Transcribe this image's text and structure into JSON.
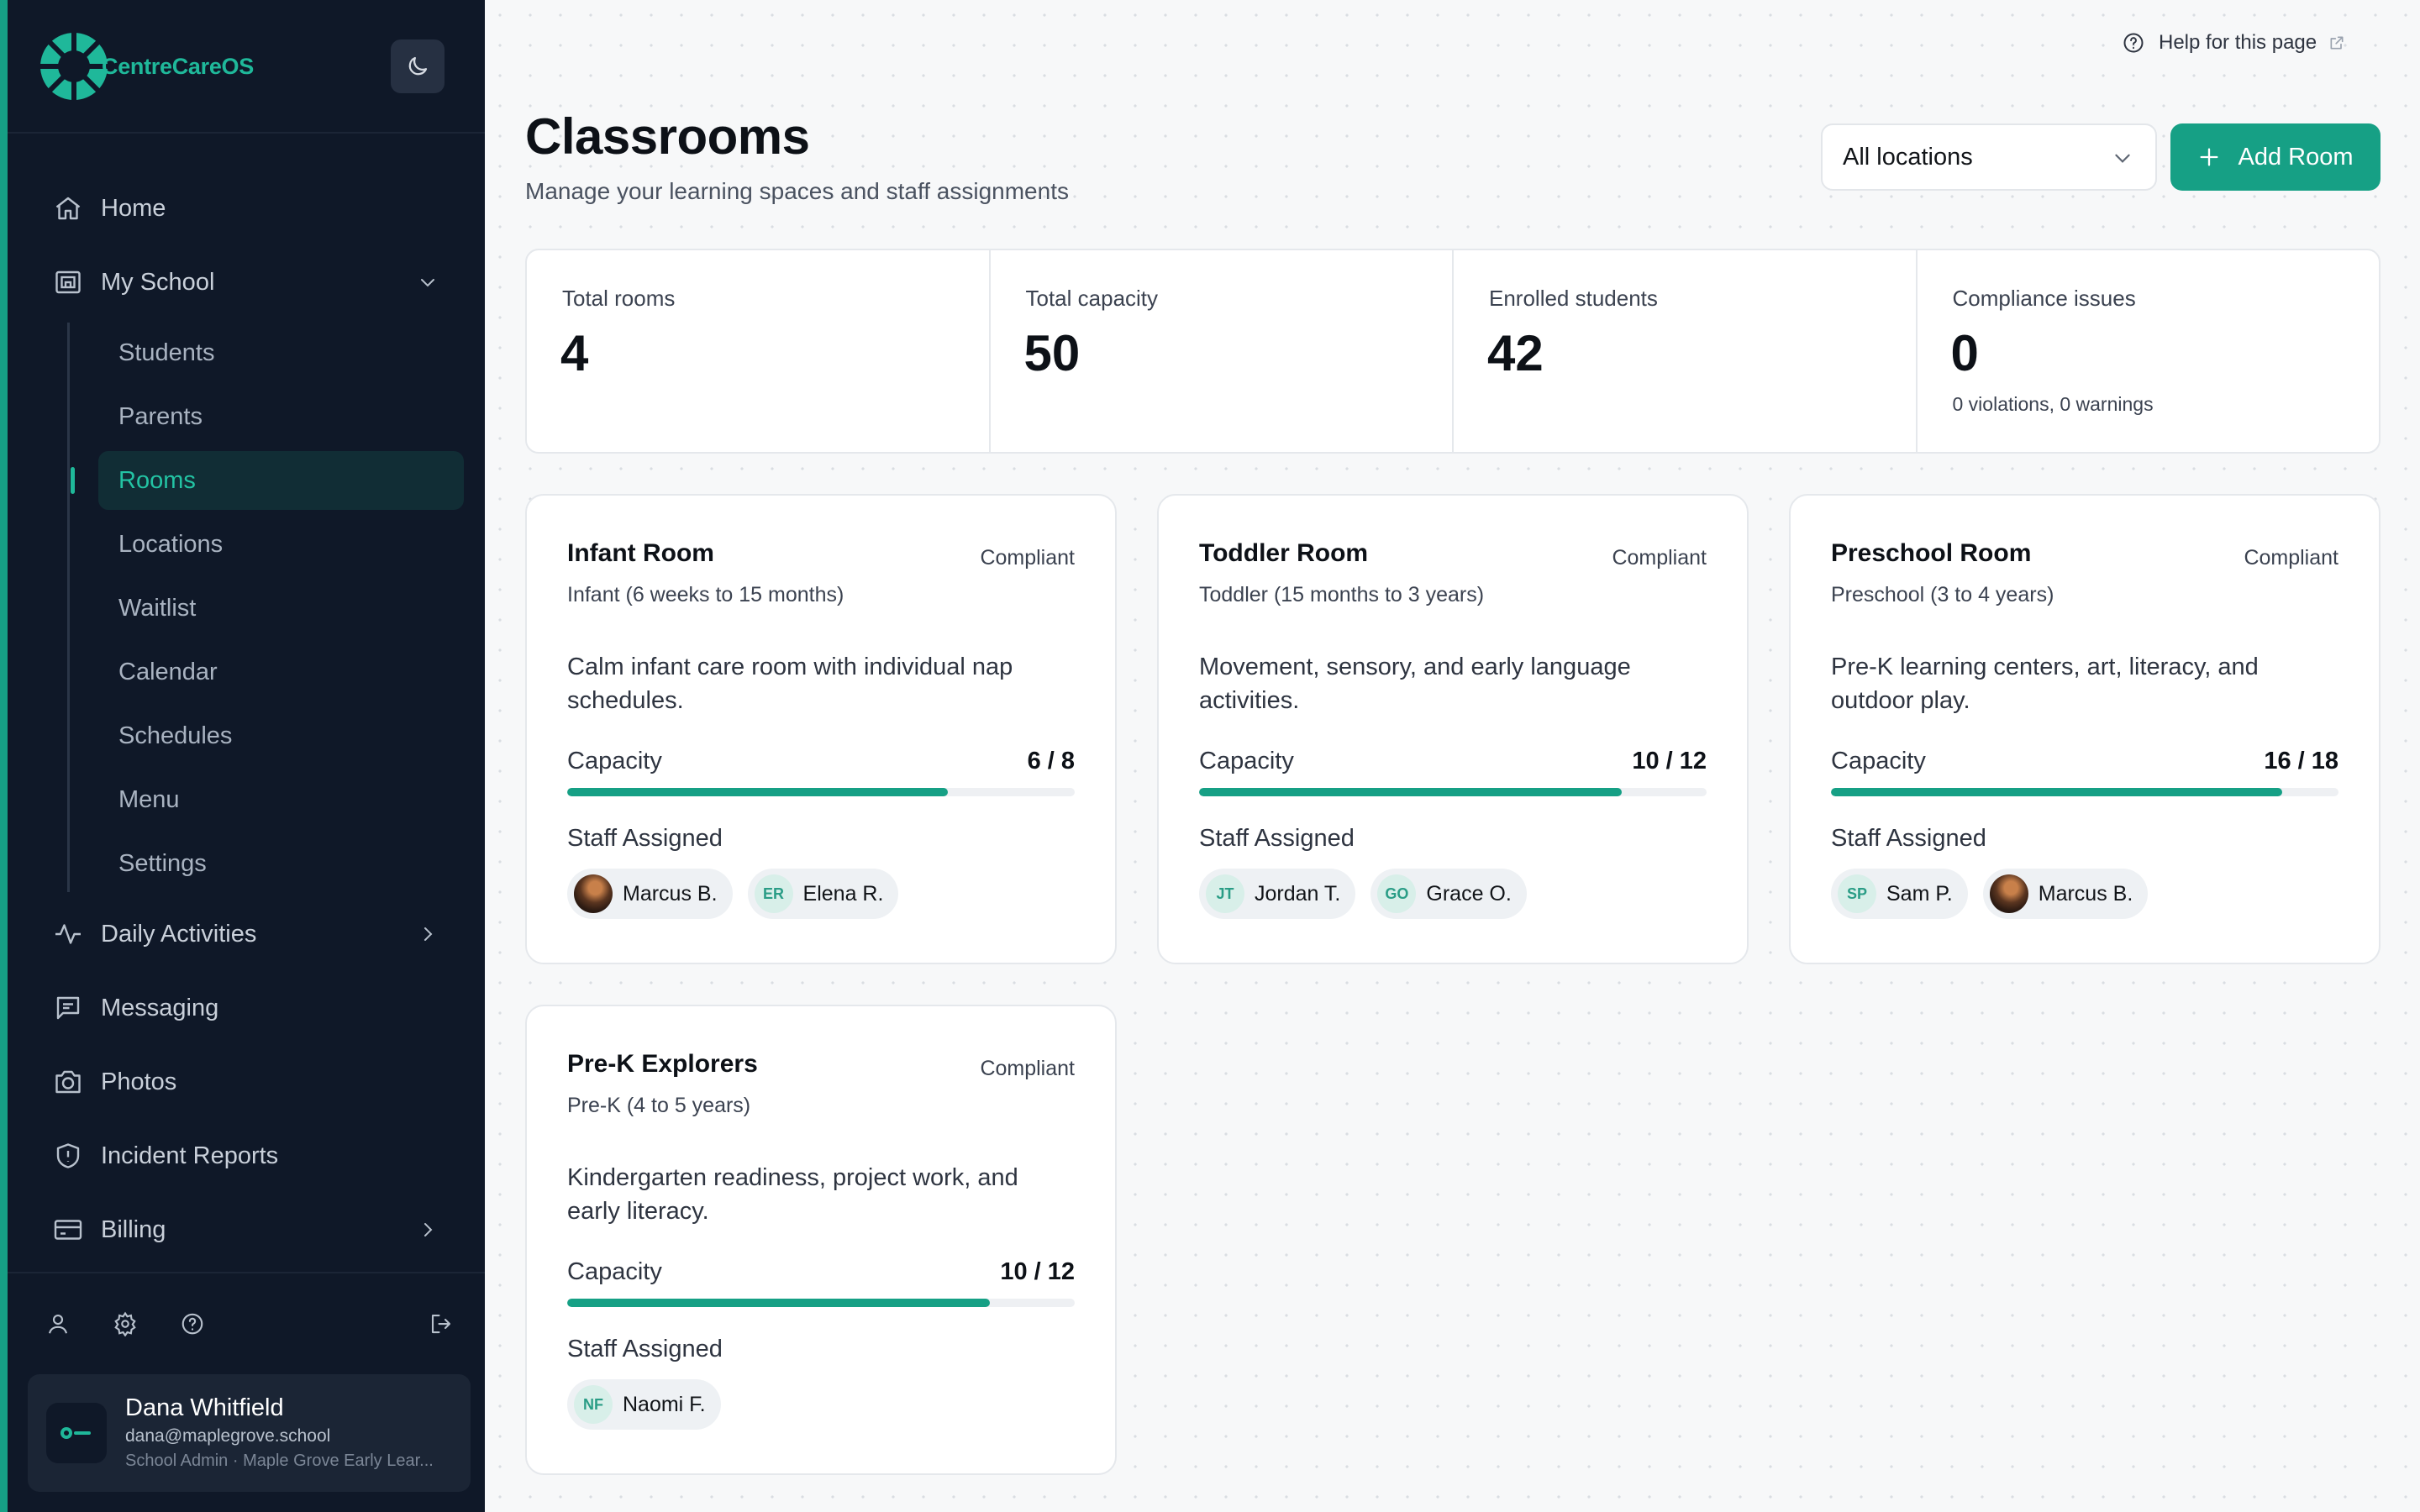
{
  "app": {
    "name": "CentreCareOS"
  },
  "sidebar": {
    "nav": [
      {
        "label": "Home",
        "icon": "home-icon"
      },
      {
        "label": "My School",
        "icon": "school-icon",
        "expanded": true
      },
      {
        "label": "Daily Activities",
        "icon": "activity-icon"
      },
      {
        "label": "Messaging",
        "icon": "message-icon"
      },
      {
        "label": "Photos",
        "icon": "camera-icon"
      },
      {
        "label": "Incident Reports",
        "icon": "shield-icon"
      },
      {
        "label": "Billing",
        "icon": "credit-card-icon"
      }
    ],
    "school_sub": [
      {
        "label": "Students"
      },
      {
        "label": "Parents"
      },
      {
        "label": "Rooms",
        "active": true
      },
      {
        "label": "Locations"
      },
      {
        "label": "Waitlist"
      },
      {
        "label": "Calendar"
      },
      {
        "label": "Schedules"
      },
      {
        "label": "Menu"
      },
      {
        "label": "Settings"
      }
    ],
    "bottom_icons": [
      "user-icon",
      "gear-icon",
      "help-icon",
      "logout-icon"
    ],
    "user": {
      "name": "Dana Whitfield",
      "email": "dana@maplegrove.school",
      "role": "School Admin · Maple Grove Early Lear..."
    }
  },
  "header": {
    "help_link": "Help for this page",
    "title": "Classrooms",
    "subtitle": "Manage your learning spaces and staff assignments",
    "location_select": "All locations",
    "add_button": "Add Room"
  },
  "stats": [
    {
      "label": "Total rooms",
      "value": "4"
    },
    {
      "label": "Total capacity",
      "value": "50"
    },
    {
      "label": "Enrolled students",
      "value": "42"
    },
    {
      "label": "Compliance issues",
      "value": "0",
      "note": "0 violations, 0 warnings"
    }
  ],
  "labels": {
    "capacity": "Capacity",
    "staff_assigned": "Staff Assigned"
  },
  "rooms": [
    {
      "name": "Infant Room",
      "status": "Compliant",
      "age": "Infant (6 weeks to 15 months)",
      "description": "Calm infant care room with individual nap schedules.",
      "capacity": "6 / 8",
      "fill": 0.75,
      "staff": [
        {
          "name": "Marcus B.",
          "avatar": "photo"
        },
        {
          "name": "Elena R.",
          "initials": "ER"
        }
      ]
    },
    {
      "name": "Toddler Room",
      "status": "Compliant",
      "age": "Toddler (15 months to 3 years)",
      "description": "Movement, sensory, and early language activities.",
      "capacity": "10 / 12",
      "fill": 0.8333,
      "staff": [
        {
          "name": "Jordan T.",
          "initials": "JT"
        },
        {
          "name": "Grace O.",
          "initials": "GO"
        }
      ]
    },
    {
      "name": "Preschool Room",
      "status": "Compliant",
      "age": "Preschool (3 to 4 years)",
      "description": "Pre-K learning centers, art, literacy, and outdoor play.",
      "capacity": "16 / 18",
      "fill": 0.8889,
      "staff": [
        {
          "name": "Sam P.",
          "initials": "SP"
        },
        {
          "name": "Marcus B.",
          "avatar": "photo"
        }
      ]
    },
    {
      "name": "Pre-K Explorers",
      "status": "Compliant",
      "age": "Pre-K (4 to 5 years)",
      "description": "Kindergarten readiness, project work, and early literacy.",
      "capacity": "10 / 12",
      "fill": 0.8333,
      "staff": [
        {
          "name": "Naomi F.",
          "initials": "NF"
        }
      ]
    }
  ],
  "colors": {
    "accent": "#16a085",
    "sidebar_bg": "#0f1828",
    "active_text": "#23c3a3"
  }
}
